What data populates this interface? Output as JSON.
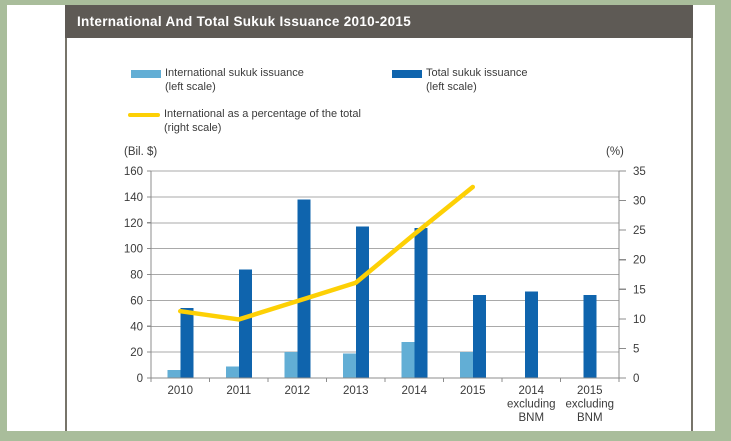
{
  "frame": {
    "border_color": "#a9bd9b",
    "page_bg": "#ffffff"
  },
  "panel": {
    "title": "International And Total Sukuk Issuance 2010-2015",
    "title_bar_bg": "#5e5a55",
    "title_color": "#ffffff",
    "border_color": "#77746a"
  },
  "colors": {
    "light_blue": "#62aed5",
    "dark_blue": "#0f64ad",
    "yellow": "#fdd005",
    "grid": "#a9a9a9",
    "axis": "#8c8c8c",
    "text": "#3b3b3b"
  },
  "legend": {
    "items": [
      {
        "swatch": "bar",
        "color": "#62aed5",
        "label_line1": "International sukuk issuance",
        "label_line2": "(left scale)"
      },
      {
        "swatch": "bar",
        "color": "#0f64ad",
        "label_line1": "Total sukuk issuance",
        "label_line2": "(left scale)"
      },
      {
        "swatch": "line",
        "color": "#fdd005",
        "label_line1": "International as a percentage of the total",
        "label_line2": "(right scale)"
      }
    ]
  },
  "chart_data": {
    "type": "bar",
    "title": "International And Total Sukuk Issuance 2010-2015",
    "xlabel": "",
    "ylabel": "(Bil. $)",
    "left_axis": {
      "unit": "(Bil. $)",
      "min": 0,
      "max": 160,
      "step": 20
    },
    "right_axis": {
      "unit": "(%)",
      "min": 0,
      "max": 35,
      "step": 5
    },
    "grid": true,
    "legend_position": "top",
    "categories": [
      "2010",
      "2011",
      "2012",
      "2013",
      "2014",
      "2015",
      "2014 excluding BNM",
      "2015 excluding BNM"
    ],
    "category_labels": [
      [
        "2010"
      ],
      [
        "2011"
      ],
      [
        "2012"
      ],
      [
        "2013"
      ],
      [
        "2014"
      ],
      [
        "2015"
      ],
      [
        "2014",
        "excluding",
        "BNM"
      ],
      [
        "2015",
        "excluding",
        "BNM"
      ]
    ],
    "series": [
      {
        "name": "International sukuk issuance (left scale)",
        "type": "bar",
        "axis": "left",
        "color": "#62aed5",
        "values": [
          6,
          9,
          20,
          19,
          28,
          20,
          null,
          null
        ]
      },
      {
        "name": "Total sukuk issuance (left scale)",
        "type": "bar",
        "axis": "left",
        "color": "#0f64ad",
        "values": [
          54,
          84,
          138,
          117,
          116,
          64,
          67,
          64
        ]
      },
      {
        "name": "International as a percentage of the total (right scale)",
        "type": "line",
        "axis": "right",
        "color": "#fdd005",
        "values": [
          11.3,
          9.9,
          13,
          16.1,
          24.3,
          32.3,
          null,
          null
        ]
      }
    ]
  }
}
